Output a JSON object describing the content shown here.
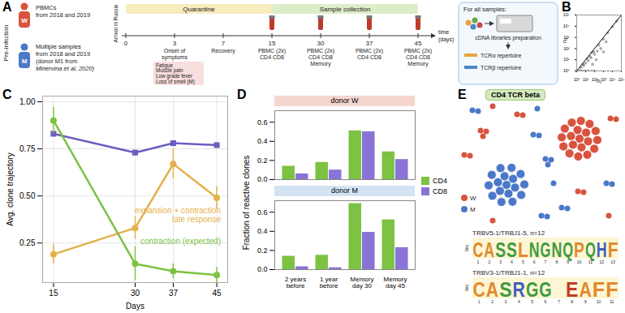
{
  "chart_data": [
    {
      "panel": "B",
      "type": "scatter",
      "xlabel": "n₁",
      "ylabel": "n₂",
      "log": true,
      "xlim": [
        1,
        100000
      ],
      "ylim": [
        1,
        100000
      ],
      "xticks": [
        {
          "value": 1,
          "label": "10⁰"
        },
        {
          "value": 10,
          "label": "10¹"
        },
        {
          "value": 100,
          "label": "10²"
        },
        {
          "value": 1000,
          "label": "10³"
        },
        {
          "value": 10000,
          "label": "10⁴"
        },
        {
          "value": 100000,
          "label": "10⁵"
        }
      ],
      "yticks": [
        {
          "value": 1,
          "label": "10⁰"
        },
        {
          "value": 10,
          "label": "10¹"
        },
        {
          "value": 100,
          "label": "10²"
        },
        {
          "value": 1000,
          "label": "10³"
        },
        {
          "value": 10000,
          "label": "10⁴"
        },
        {
          "value": 100000,
          "label": "10⁵"
        }
      ],
      "points": {
        "color": "#555555",
        "x": [
          1,
          2,
          3,
          5,
          10,
          20,
          50,
          100,
          3,
          6,
          10,
          20,
          40,
          100,
          200,
          30,
          80,
          300,
          1000,
          3000,
          10000,
          30000,
          500,
          2000,
          150,
          60,
          1000,
          5,
          15,
          50
        ],
        "y": [
          1,
          1,
          1,
          1,
          1,
          1,
          1,
          1,
          2,
          3,
          5,
          8,
          15,
          30,
          60,
          20,
          50,
          200,
          700,
          2500,
          9000,
          28000,
          100,
          400,
          10,
          4,
          50,
          4,
          12,
          45
        ]
      },
      "line": {
        "color": "#000000",
        "x": [
          1,
          100000
        ],
        "y": [
          1,
          100000
        ]
      }
    },
    {
      "panel": "C",
      "type": "line",
      "xlabel": "Days",
      "ylabel": "Avg. clone trajectory",
      "x": [
        15,
        30,
        37,
        45
      ],
      "xlim": [
        13,
        47
      ],
      "xticks": [
        15,
        30,
        37,
        45
      ],
      "ylim": [
        0.04,
        1.03
      ],
      "yticks": [
        {
          "value": 0.25,
          "label": "0.25"
        },
        {
          "value": 0.5,
          "label": "0.50"
        },
        {
          "value": 0.75,
          "label": "0.75"
        },
        {
          "value": 1,
          "label": "1.00"
        }
      ],
      "grid": true,
      "series": [
        {
          "color": "#6a5fc1",
          "marker": "square",
          "values": [
            0.83,
            0.73,
            0.78,
            0.77
          ],
          "errors": [
            0.01,
            0.01,
            0.01,
            0.01
          ]
        },
        {
          "color": "#e3b04b",
          "marker": "circle",
          "values": [
            0.19,
            0.33,
            0.67,
            0.49
          ],
          "errors": [
            0.05,
            0.06,
            0.08,
            0.06
          ],
          "annotation": [
            "expansion + contraction",
            "late response"
          ]
        },
        {
          "color": "#7dc242",
          "marker": "circle",
          "values": [
            0.9,
            0.14,
            0.1,
            0.08
          ],
          "errors": [
            0.07,
            0.09,
            0.04,
            0.04
          ],
          "annotation": [
            "contraction (expected)"
          ]
        }
      ]
    },
    {
      "panel": "D",
      "type": "bar",
      "ylabel": "Fraction of reactive clones",
      "categories": [
        "2 years before",
        "1 year before",
        "Memory day 30",
        "Memory day 45"
      ],
      "ylim": [
        0,
        0.72
      ],
      "yticks": [
        {
          "value": 0,
          "label": "0.0"
        },
        {
          "value": 0.2,
          "label": "0.2"
        },
        {
          "value": 0.4,
          "label": "0.4"
        },
        {
          "value": 0.6,
          "label": "0.6"
        }
      ],
      "legend": "right",
      "facets": [
        {
          "title": "donor W",
          "color": "#f4d6cf",
          "tick_labels": "y",
          "series": [
            {
              "name": "CD4",
              "color": "#7dc242",
              "values": [
                0.14,
                0.18,
                0.51,
                0.29
              ]
            },
            {
              "name": "CD8",
              "color": "#8a73d6",
              "values": [
                0.06,
                0.1,
                0.5,
                0.21
              ]
            }
          ]
        },
        {
          "title": "donor M",
          "color": "#d3e3f4",
          "series": [
            {
              "name": "CD4",
              "color": "#7dc242",
              "values": [
                0.14,
                0.15,
                0.69,
                0.52
              ]
            },
            {
              "name": "CD8",
              "color": "#8a73d6",
              "values": [
                0.03,
                0.02,
                0.39,
                0.23
              ]
            }
          ]
        }
      ]
    }
  ],
  "diagrams": [
    {
      "panel": "A",
      "pre_infection": "Pre-infection",
      "donors": [
        {
          "label": "W",
          "text": [
            "PBMCs",
            "from 2018 and 2019"
          ]
        },
        {
          "label": "M",
          "text": [
            "Multiple samples",
            "from 2018 and 2019",
            "(donor M1 from"
          ],
          "citation": "Minervina et al, 2020)"
        }
      ],
      "arrival": "Arrival in Russia",
      "days": [
        0,
        3,
        7,
        15,
        30,
        37,
        45
      ],
      "time_label": [
        "time",
        "(days)"
      ],
      "phases": [
        {
          "label": "Quarantine",
          "start": 0,
          "end": 15,
          "color": "#f8ebbd"
        },
        {
          "label": "Sample collection",
          "start": 15,
          "end": 45,
          "color": "#dcedc8"
        }
      ],
      "events": [
        {
          "day": 3,
          "text": [
            "Onset of",
            "symptoms"
          ]
        },
        {
          "day": 7,
          "text": [
            "Recovery"
          ]
        }
      ],
      "symptoms": {
        "color": "#f9dede",
        "items": [
          "Fatigue",
          "Muscle pain",
          "Low grade fever",
          "Loss of smell (M)"
        ]
      },
      "samples": [
        {
          "day": 15,
          "text": [
            "PBMC (2x)",
            "CD4 CD8"
          ]
        },
        {
          "day": 30,
          "text": [
            "PBMC (2x)",
            "CD4 CD8",
            "Memory"
          ]
        },
        {
          "day": 37,
          "text": [
            "PBMC (2x)",
            "CD4 CD8"
          ]
        },
        {
          "day": 45,
          "text": [
            "PBMC (2x)",
            "CD4 CD8",
            "Memory"
          ]
        }
      ],
      "workflow": {
        "title": "For all samples:",
        "step": "cDNA libraries preparation",
        "outputs": [
          "TCRα repertoire",
          "TCRβ repertoire"
        ]
      }
    },
    {
      "panel": "E",
      "title": "CD4 TCR beta",
      "title_color": "#d5eabf",
      "legend": [
        {
          "label": "W",
          "color": "#d9533f"
        },
        {
          "label": "M",
          "color": "#4b78c8"
        }
      ],
      "clusters": [
        {
          "donor": "W",
          "nodes": 19
        },
        {
          "donor": "M",
          "nodes": 17
        }
      ],
      "small_components": [
        {
          "donor": "M",
          "nodes": 2
        },
        {
          "donor": "W",
          "nodes": 1
        },
        {
          "donor": "W",
          "nodes": 2
        },
        {
          "donor": "M",
          "nodes": 1
        },
        {
          "donor": "W",
          "nodes": 3
        },
        {
          "donor": "M",
          "nodes": 2
        },
        {
          "donor": "W",
          "nodes": 2
        },
        {
          "donor": "M",
          "nodes": 3
        },
        {
          "donor": "M",
          "nodes": 2
        },
        {
          "donor": "W",
          "nodes": 2
        },
        {
          "donor": "M",
          "nodes": 1
        },
        {
          "donor": "W",
          "nodes": 2
        },
        {
          "donor": "M",
          "nodes": 2
        },
        {
          "donor": "W",
          "nodes": 1
        },
        {
          "donor": "M",
          "nodes": 2
        },
        {
          "donor": "W",
          "nodes": 1
        }
      ],
      "logos": [
        {
          "label": "TRBV5-1/TRBJ1-5, n=12",
          "ylabel": "Bits",
          "letters": [
            "C",
            "A",
            "S",
            "S",
            "L",
            "N",
            "G",
            "N",
            "Q",
            "P",
            "Q",
            "H",
            "F"
          ],
          "positions": [
            1,
            2,
            3,
            4,
            5,
            6,
            7,
            8,
            9,
            10,
            11,
            12,
            13
          ]
        },
        {
          "label": "TRBV3-1/TRBJ1-1, n=12",
          "ylabel": "Bits",
          "letters": [
            "C",
            "A",
            "S",
            "R",
            "G",
            "G",
            null,
            "E",
            "A",
            "F",
            "F"
          ],
          "positions": [
            1,
            2,
            3,
            4,
            5,
            6,
            7,
            8,
            9,
            10,
            11
          ]
        }
      ]
    }
  ]
}
